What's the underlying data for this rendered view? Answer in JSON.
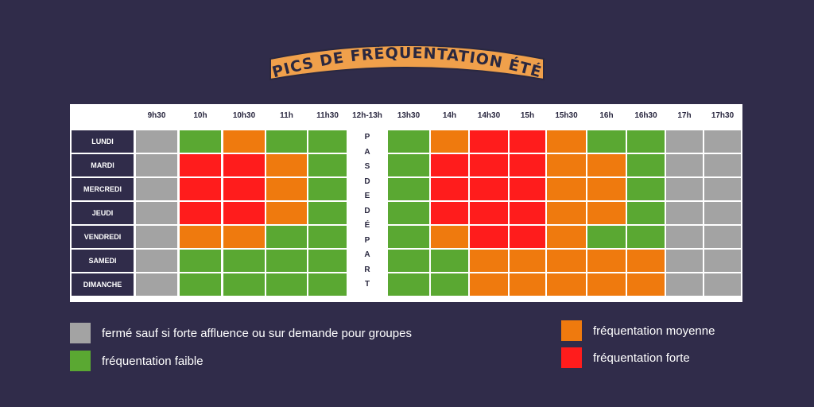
{
  "title": "PICS DE FRÉQUENTATION ÉTÉ",
  "colors": {
    "background": "#302c4a",
    "title_banner": "#f0a04b",
    "closed": "#a3a3a3",
    "low": "#5aa832",
    "medium": "#ef7a0e",
    "high": "#ff1c1c"
  },
  "chart_data": {
    "type": "heatmap",
    "columns": [
      "9h30",
      "10h",
      "10h30",
      "11h",
      "11h30",
      "12h-13h",
      "13h30",
      "14h",
      "14h30",
      "15h",
      "15h30",
      "16h",
      "16h30",
      "17h",
      "17h30"
    ],
    "rows": [
      "LUNDI",
      "MARDI",
      "MERCREDI",
      "JEUDI",
      "VENDREDI",
      "SAMEDI",
      "DIMANCHE"
    ],
    "pause_column": "12h-13h",
    "pause_text": [
      "P",
      "A",
      "S",
      "D",
      "E",
      "D",
      "É",
      "P",
      "A",
      "R",
      "T"
    ],
    "levels": {
      "C": "fermé sauf si forte affluence ou sur demande pour groupes",
      "L": "fréquentation faible",
      "M": "fréquentation moyenne",
      "H": "fréquentation forte"
    },
    "values": [
      [
        "C",
        "L",
        "M",
        "L",
        "L",
        null,
        "L",
        "M",
        "H",
        "H",
        "M",
        "L",
        "L",
        "C",
        "C"
      ],
      [
        "C",
        "H",
        "H",
        "M",
        "L",
        null,
        "L",
        "H",
        "H",
        "H",
        "M",
        "M",
        "L",
        "C",
        "C"
      ],
      [
        "C",
        "H",
        "H",
        "M",
        "L",
        null,
        "L",
        "H",
        "H",
        "H",
        "M",
        "M",
        "L",
        "C",
        "C"
      ],
      [
        "C",
        "H",
        "H",
        "M",
        "L",
        null,
        "L",
        "H",
        "H",
        "H",
        "M",
        "M",
        "L",
        "C",
        "C"
      ],
      [
        "C",
        "M",
        "M",
        "L",
        "L",
        null,
        "L",
        "M",
        "H",
        "H",
        "M",
        "L",
        "L",
        "C",
        "C"
      ],
      [
        "C",
        "L",
        "L",
        "L",
        "L",
        null,
        "L",
        "L",
        "M",
        "M",
        "M",
        "M",
        "M",
        "C",
        "C"
      ],
      [
        "C",
        "L",
        "L",
        "L",
        "L",
        null,
        "L",
        "L",
        "M",
        "M",
        "M",
        "M",
        "M",
        "C",
        "C"
      ]
    ]
  },
  "legend": [
    {
      "key": "C",
      "label": "fermé sauf si forte affluence ou sur demande pour groupes"
    },
    {
      "key": "L",
      "label": "fréquentation faible"
    },
    {
      "key": "M",
      "label": "fréquentation moyenne"
    },
    {
      "key": "H",
      "label": "fréquentation forte"
    }
  ]
}
